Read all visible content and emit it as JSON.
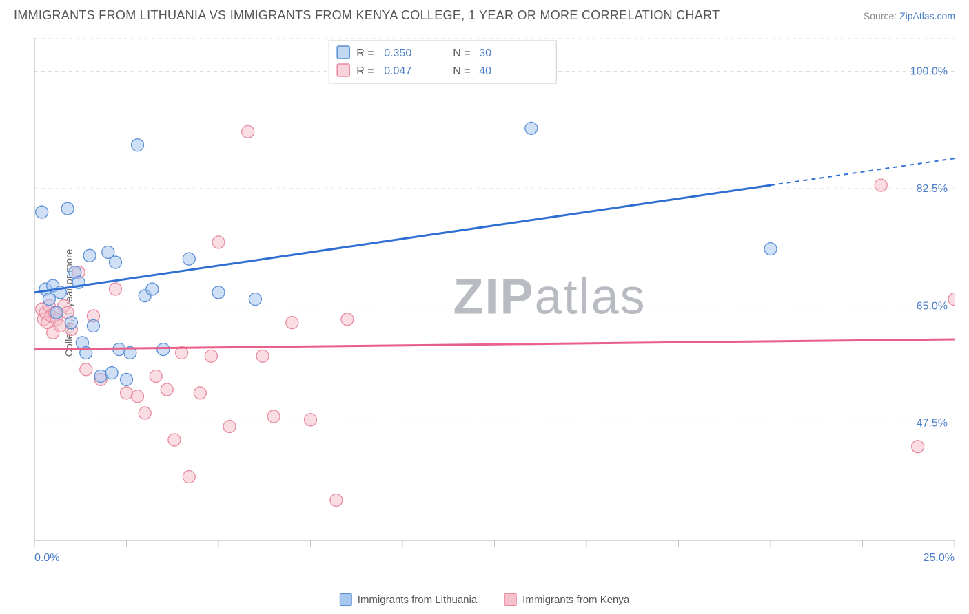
{
  "title": "IMMIGRANTS FROM LITHUANIA VS IMMIGRANTS FROM KENYA COLLEGE, 1 YEAR OR MORE CORRELATION CHART",
  "source_prefix": "Source: ",
  "source_name": "ZipAtlas.com",
  "y_label": "College, 1 year or more",
  "watermark_bold": "ZIP",
  "watermark_light": "atlas",
  "chart": {
    "type": "scatter",
    "background_color": "#ffffff",
    "grid_color": "#d8d8d8",
    "axis_color": "#bfbfbf",
    "xlim": [
      0,
      25
    ],
    "ylim": [
      30,
      105
    ],
    "x_ticks": [
      0,
      2.5,
      5,
      7.5,
      10,
      12.5,
      15,
      17.5,
      20,
      22.5,
      25
    ],
    "x_tick_labels": {
      "0": "0.0%",
      "25": "25.0%"
    },
    "y_gridlines": [
      47.5,
      65.0,
      82.5,
      100.0
    ],
    "y_tick_labels": [
      "47.5%",
      "65.0%",
      "82.5%",
      "100.0%"
    ],
    "marker_radius": 9,
    "marker_opacity": 0.55,
    "series": [
      {
        "name": "Immigrants from Lithuania",
        "fill_color": "#a7c7ee",
        "stroke_color": "#5b8fd6",
        "line_color": "#2f6fd3",
        "r_value": "0.350",
        "n_value": "30",
        "regression": {
          "x1": 0,
          "y1": 67.0,
          "x2": 20,
          "y2": 83.0,
          "dashed_to_x": 25,
          "dashed_to_y": 87.0
        },
        "points": [
          [
            0.2,
            79.0
          ],
          [
            0.3,
            67.5
          ],
          [
            0.4,
            66.0
          ],
          [
            0.5,
            68.0
          ],
          [
            0.6,
            64.0
          ],
          [
            0.7,
            67.0
          ],
          [
            0.9,
            79.5
          ],
          [
            1.0,
            62.5
          ],
          [
            1.1,
            70.0
          ],
          [
            1.2,
            68.5
          ],
          [
            1.3,
            59.5
          ],
          [
            1.4,
            58.0
          ],
          [
            1.5,
            72.5
          ],
          [
            1.6,
            62.0
          ],
          [
            1.8,
            54.5
          ],
          [
            2.0,
            73.0
          ],
          [
            2.1,
            55.0
          ],
          [
            2.2,
            71.5
          ],
          [
            2.3,
            58.5
          ],
          [
            2.5,
            54.0
          ],
          [
            2.6,
            58.0
          ],
          [
            2.8,
            89.0
          ],
          [
            3.0,
            66.5
          ],
          [
            3.2,
            67.5
          ],
          [
            3.5,
            58.5
          ],
          [
            4.2,
            72.0
          ],
          [
            5.0,
            67.0
          ],
          [
            6.0,
            66.0
          ],
          [
            13.5,
            91.5
          ],
          [
            20.0,
            73.5
          ]
        ]
      },
      {
        "name": "Immigrants from Kenya",
        "fill_color": "#f6c1cc",
        "stroke_color": "#e88aa0",
        "line_color": "#e85f8a",
        "r_value": "0.047",
        "n_value": "40",
        "regression": {
          "x1": 0,
          "y1": 58.5,
          "x2": 25,
          "y2": 60.0
        },
        "points": [
          [
            0.2,
            64.5
          ],
          [
            0.25,
            63.0
          ],
          [
            0.3,
            64.0
          ],
          [
            0.35,
            62.5
          ],
          [
            0.4,
            65.0
          ],
          [
            0.45,
            63.5
          ],
          [
            0.5,
            61.0
          ],
          [
            0.55,
            64.0
          ],
          [
            0.6,
            63.0
          ],
          [
            0.7,
            62.0
          ],
          [
            0.8,
            65.0
          ],
          [
            0.9,
            64.0
          ],
          [
            1.0,
            61.5
          ],
          [
            1.2,
            70.0
          ],
          [
            1.4,
            55.5
          ],
          [
            1.6,
            63.5
          ],
          [
            1.8,
            54.0
          ],
          [
            2.2,
            67.5
          ],
          [
            2.5,
            52.0
          ],
          [
            2.8,
            51.5
          ],
          [
            3.0,
            49.0
          ],
          [
            3.3,
            54.5
          ],
          [
            3.6,
            52.5
          ],
          [
            3.8,
            45.0
          ],
          [
            4.0,
            58.0
          ],
          [
            4.2,
            39.5
          ],
          [
            4.5,
            52.0
          ],
          [
            4.8,
            57.5
          ],
          [
            5.0,
            74.5
          ],
          [
            5.3,
            47.0
          ],
          [
            5.8,
            91.0
          ],
          [
            6.2,
            57.5
          ],
          [
            6.5,
            48.5
          ],
          [
            7.0,
            62.5
          ],
          [
            7.5,
            48.0
          ],
          [
            8.2,
            36.0
          ],
          [
            8.5,
            63.0
          ],
          [
            23.0,
            83.0
          ],
          [
            24.0,
            44.0
          ],
          [
            25.0,
            66.0
          ]
        ]
      }
    ],
    "legend_labels": {
      "r": "R =",
      "n": "N ="
    }
  },
  "bottom_legend": [
    "Immigrants from Lithuania",
    "Immigrants from Kenya"
  ]
}
